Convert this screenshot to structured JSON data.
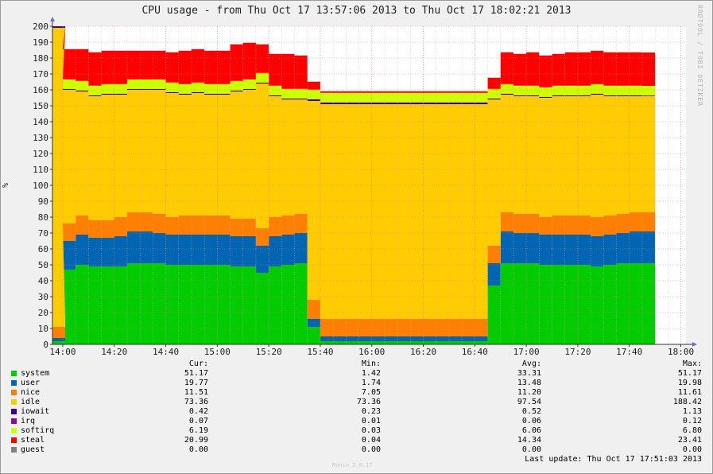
{
  "title": "CPU usage - from Thu Oct 17 13:57:06 2013 to Thu Oct 17 18:02:21 2013",
  "watermark": "RRDTOOL / TOBI OETIKER",
  "version": "Munin 2.0.17",
  "last_update": "Last update: Thu Oct 17 17:51:03 2013",
  "columns": [
    "Cur:",
    "Min:",
    "Avg:",
    "Max:"
  ],
  "legend": [
    {
      "name": "system",
      "color": "#00cc00",
      "cur": "51.17",
      "min": "1.42",
      "avg": "33.31",
      "max": "51.17"
    },
    {
      "name": "user",
      "color": "#0066b3",
      "cur": "19.77",
      "min": "1.74",
      "avg": "13.48",
      "max": "19.98"
    },
    {
      "name": "nice",
      "color": "#ff8000",
      "cur": "11.51",
      "min": "7.05",
      "avg": "11.20",
      "max": "11.61"
    },
    {
      "name": "idle",
      "color": "#ffcc00",
      "cur": "73.36",
      "min": "73.36",
      "avg": "97.54",
      "max": "188.42"
    },
    {
      "name": "iowait",
      "color": "#330099",
      "cur": "0.42",
      "min": "0.23",
      "avg": "0.52",
      "max": "1.13"
    },
    {
      "name": "irq",
      "color": "#990099",
      "cur": "0.07",
      "min": "0.01",
      "avg": "0.06",
      "max": "0.12"
    },
    {
      "name": "softirq",
      "color": "#ccff00",
      "cur": "6.19",
      "min": "0.03",
      "avg": "6.06",
      "max": "6.80"
    },
    {
      "name": "steal",
      "color": "#ff0000",
      "cur": "20.99",
      "min": "0.04",
      "avg": "14.34",
      "max": "23.41"
    },
    {
      "name": "guest",
      "color": "#808080",
      "cur": "0.00",
      "min": "0.00",
      "avg": "0.00",
      "max": "0.00"
    }
  ],
  "chart_data": {
    "type": "area",
    "stacked": true,
    "title": "CPU usage - from Thu Oct 17 13:57:06 2013 to Thu Oct 17 18:02:21 2013",
    "ylabel": "%",
    "ylim": [
      0,
      200
    ],
    "yticks": [
      0,
      10,
      20,
      30,
      40,
      50,
      60,
      70,
      80,
      90,
      100,
      110,
      120,
      130,
      140,
      150,
      160,
      170,
      180,
      190,
      200
    ],
    "xticks": [
      "14:00",
      "14:20",
      "14:40",
      "15:00",
      "15:20",
      "15:40",
      "16:00",
      "16:20",
      "16:40",
      "17:00",
      "17:20",
      "17:40",
      "18:00"
    ],
    "xlim": [
      "13:56",
      "18:02"
    ],
    "grid": true,
    "x": [
      "13:56",
      "14:00",
      "14:05",
      "14:10",
      "14:15",
      "14:20",
      "14:25",
      "14:30",
      "14:35",
      "14:40",
      "14:45",
      "14:50",
      "14:55",
      "15:00",
      "15:05",
      "15:10",
      "15:15",
      "15:20",
      "15:25",
      "15:30",
      "15:35",
      "15:40",
      "15:45",
      "15:50",
      "15:55",
      "16:00",
      "16:05",
      "16:10",
      "16:15",
      "16:20",
      "16:25",
      "16:30",
      "16:35",
      "16:40",
      "16:45",
      "16:50",
      "16:55",
      "17:00",
      "17:05",
      "17:10",
      "17:15",
      "17:20",
      "17:25",
      "17:30",
      "17:35",
      "17:40",
      "17:45"
    ],
    "series": [
      {
        "name": "system",
        "values": [
          2,
          47,
          50,
          49,
          49,
          49,
          51,
          51,
          51,
          50,
          50,
          50,
          50,
          50,
          49,
          49,
          45,
          49,
          50,
          51,
          11,
          2,
          2,
          2,
          2,
          2,
          2,
          2,
          2,
          2,
          2,
          2,
          2,
          2,
          37,
          51,
          51,
          51,
          50,
          50,
          50,
          50,
          49,
          50,
          51,
          51,
          51
        ]
      },
      {
        "name": "user",
        "values": [
          2,
          18,
          19,
          18,
          18,
          19,
          20,
          20,
          19,
          19,
          19,
          19,
          19,
          19,
          19,
          19,
          17,
          19,
          19,
          19,
          5,
          3,
          3,
          3,
          3,
          3,
          3,
          3,
          3,
          3,
          3,
          3,
          3,
          3,
          14,
          20,
          19,
          19,
          19,
          19,
          19,
          19,
          19,
          19,
          19,
          20,
          20
        ]
      },
      {
        "name": "nice",
        "values": [
          7,
          11,
          12,
          11,
          11,
          12,
          12,
          12,
          12,
          11,
          12,
          12,
          12,
          12,
          11,
          11,
          11,
          12,
          12,
          12,
          12,
          11,
          11,
          11,
          11,
          11,
          11,
          11,
          11,
          11,
          11,
          11,
          11,
          11,
          11,
          12,
          12,
          12,
          11,
          12,
          12,
          12,
          12,
          12,
          12,
          12,
          12
        ]
      },
      {
        "name": "idle",
        "values": [
          188,
          84,
          78,
          78,
          79,
          77,
          77,
          77,
          78,
          78,
          76,
          77,
          76,
          76,
          80,
          81,
          91,
          76,
          73,
          72,
          125,
          135,
          135,
          135,
          135,
          135,
          135,
          135,
          135,
          135,
          135,
          135,
          135,
          135,
          92,
          74,
          74,
          74,
          75,
          75,
          75,
          75,
          77,
          75,
          74,
          73,
          73
        ]
      },
      {
        "name": "iowait",
        "values": [
          1.1,
          0.5,
          0.5,
          0.5,
          0.5,
          0.5,
          0.5,
          0.5,
          0.5,
          0.5,
          0.5,
          0.5,
          0.5,
          0.5,
          0.5,
          0.5,
          0.5,
          0.5,
          0.5,
          0.5,
          1,
          1,
          1,
          1,
          1,
          1,
          1,
          1,
          1,
          1,
          1,
          1,
          1,
          1,
          0.5,
          0.5,
          0.5,
          0.5,
          0.5,
          0.5,
          0.5,
          0.5,
          0.5,
          0.5,
          0.5,
          0.5,
          0.4
        ]
      },
      {
        "name": "irq",
        "values": [
          0.1,
          0.1,
          0.1,
          0.1,
          0.1,
          0.1,
          0.1,
          0.1,
          0.1,
          0.1,
          0.1,
          0.1,
          0.1,
          0.1,
          0.1,
          0.1,
          0.1,
          0.1,
          0.1,
          0.1,
          0.1,
          0.1,
          0.1,
          0.1,
          0.1,
          0.1,
          0.1,
          0.1,
          0.1,
          0.1,
          0.1,
          0.1,
          0.1,
          0.1,
          0.1,
          0.1,
          0.1,
          0.1,
          0.1,
          0.1,
          0.1,
          0.1,
          0.1,
          0.1,
          0.1,
          0.1,
          0.1
        ]
      },
      {
        "name": "softirq",
        "values": [
          0,
          6,
          6,
          6,
          6,
          6,
          6,
          6,
          6,
          6,
          6,
          6,
          6,
          6,
          6,
          6,
          6,
          6,
          6,
          6,
          6,
          6,
          6,
          6,
          6,
          6,
          6,
          6,
          6,
          6,
          6,
          6,
          6,
          6,
          6,
          6,
          6,
          6,
          6,
          6,
          6,
          6,
          6,
          6,
          6,
          6,
          6
        ]
      },
      {
        "name": "steal",
        "values": [
          0,
          19,
          20,
          21,
          21,
          21,
          18,
          18,
          18,
          19,
          21,
          21,
          21,
          21,
          23,
          23,
          18,
          20,
          22,
          21,
          5,
          1,
          1,
          1,
          1,
          1,
          1,
          1,
          1,
          1,
          1,
          1,
          1,
          1,
          7,
          20,
          20,
          21,
          20,
          20,
          21,
          21,
          21,
          21,
          21,
          21,
          21
        ]
      },
      {
        "name": "guest",
        "values": [
          0,
          0,
          0,
          0,
          0,
          0,
          0,
          0,
          0,
          0,
          0,
          0,
          0,
          0,
          0,
          0,
          0,
          0,
          0,
          0,
          0,
          0,
          0,
          0,
          0,
          0,
          0,
          0,
          0,
          0,
          0,
          0,
          0,
          0,
          0,
          0,
          0,
          0,
          0,
          0,
          0,
          0,
          0,
          0,
          0,
          0,
          0
        ]
      }
    ]
  }
}
